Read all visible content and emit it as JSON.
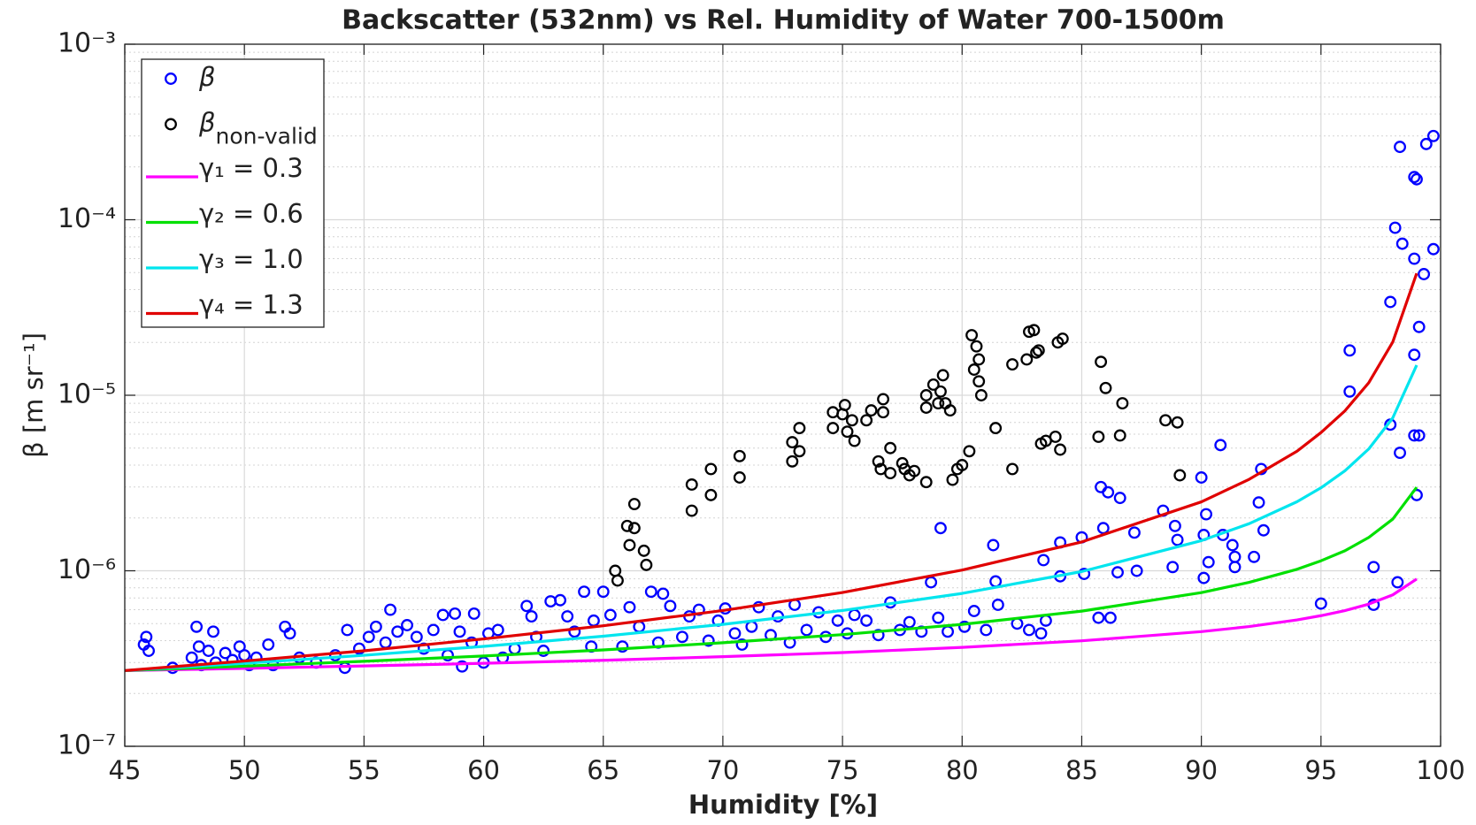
{
  "chart_data": {
    "type": "scatter",
    "title": "Backscatter (532nm) vs Rel. Humidity of Water 700-1500m",
    "x_label": "Humidity [%]",
    "y_label": "β [m sr⁻¹]",
    "xlim": [
      45,
      100
    ],
    "xticks": [
      45,
      50,
      55,
      60,
      65,
      70,
      75,
      80,
      85,
      90,
      95,
      100
    ],
    "ylim": [
      1e-07,
      0.001
    ],
    "yticks": [
      {
        "value": 1e-07,
        "label": "10⁻⁷"
      },
      {
        "value": 1e-06,
        "label": "10⁻⁶"
      },
      {
        "value": 1e-05,
        "label": "10⁻⁵"
      },
      {
        "value": 0.0001,
        "label": "10⁻⁴"
      },
      {
        "value": 0.001,
        "label": "10⁻³"
      }
    ],
    "y_scale": "log",
    "grid": true,
    "minor_grid": true,
    "legend": "upper left",
    "series": [
      {
        "name": "β",
        "type": "scatter",
        "color": "#0000ff",
        "x": [
          45.8,
          45.9,
          46,
          47,
          47.8,
          48,
          48.1,
          48.2,
          48.5,
          48.7,
          48.8,
          49.2,
          49.5,
          49.8,
          50,
          50.2,
          50.5,
          51,
          51.2,
          51.7,
          51.9,
          52.3,
          53,
          53.8,
          54.2,
          54.3,
          54.8,
          55.2,
          55.5,
          55.9,
          56.1,
          56.4,
          56.8,
          57.2,
          57.5,
          57.9,
          58.3,
          58.5,
          58.8,
          59,
          59.1,
          59.5,
          59.6,
          60,
          60.2,
          60.6,
          60.8,
          61.3,
          61.8,
          62,
          62.2,
          62.5,
          62.8,
          63.2,
          63.5,
          63.8,
          64.2,
          64.5,
          64.6,
          65,
          65.3,
          65.8,
          66.1,
          66.5,
          67,
          67.3,
          67.5,
          67.8,
          68.3,
          68.6,
          69,
          69.4,
          69.8,
          70.1,
          70.5,
          70.8,
          71.2,
          71.5,
          72,
          72.3,
          72.8,
          73,
          73.5,
          74,
          74.3,
          74.8,
          75.2,
          75.5,
          76,
          76.5,
          77,
          77.4,
          77.8,
          78.3,
          78.7,
          79,
          79.1,
          79.4,
          80.1,
          80.5,
          81,
          81.3,
          81.4,
          81.5,
          82.3,
          82.8,
          83.3,
          83.4,
          83.5,
          84.1,
          84.1,
          85,
          85.1,
          85.7,
          85.8,
          85.9,
          86.1,
          86.2,
          86.5,
          86.6,
          87.2,
          87.3,
          88.4,
          88.8,
          88.9,
          89,
          90,
          90.1,
          90.2,
          90.1,
          90.3,
          90.8,
          90.9,
          91.3,
          91.4,
          91.4,
          92.2,
          92.4,
          92.5,
          92.6,
          95,
          96.2,
          96.2,
          97.2,
          97.2,
          97.9,
          97.9,
          98.1,
          98.2,
          98.4,
          98.3,
          98.3,
          98.9,
          99,
          98.9,
          98.9,
          98.9,
          99.1,
          99.1,
          99,
          99.3,
          99.4,
          99.7,
          99.7
        ],
        "values": [
          3.8e-07,
          4.2e-07,
          3.5e-07,
          2.8e-07,
          3.2e-07,
          4.8e-07,
          3.7e-07,
          2.9e-07,
          3.5e-07,
          4.5e-07,
          3e-07,
          3.4e-07,
          3.1e-07,
          3.7e-07,
          3.3e-07,
          2.9e-07,
          3.2e-07,
          3.8e-07,
          2.9e-07,
          4.8e-07,
          4.4e-07,
          3.2e-07,
          3e-07,
          3.3e-07,
          2.8e-07,
          4.6e-07,
          3.6e-07,
          4.2e-07,
          4.8e-07,
          3.9e-07,
          6e-07,
          4.5e-07,
          4.9e-07,
          4.2e-07,
          3.6e-07,
          4.6e-07,
          5.6e-07,
          3.3e-07,
          5.7e-07,
          4.5e-07,
          2.85e-07,
          3.9e-07,
          5.7e-07,
          3e-07,
          4.4e-07,
          4.6e-07,
          3.2e-07,
          3.6e-07,
          6.3e-07,
          5.5e-07,
          4.2e-07,
          3.5e-07,
          6.7e-07,
          6.8e-07,
          5.5e-07,
          4.5e-07,
          7.6e-07,
          3.7e-07,
          5.2e-07,
          7.6e-07,
          5.6e-07,
          3.7e-07,
          6.2e-07,
          4.8e-07,
          7.6e-07,
          3.9e-07,
          7.4e-07,
          6.3e-07,
          4.2e-07,
          5.5e-07,
          6e-07,
          4e-07,
          5.2e-07,
          6.1e-07,
          4.4e-07,
          3.8e-07,
          4.8e-07,
          6.2e-07,
          4.3e-07,
          5.5e-07,
          3.9e-07,
          6.4e-07,
          4.6e-07,
          5.8e-07,
          4.2e-07,
          5.2e-07,
          4.4e-07,
          5.6e-07,
          5.2e-07,
          4.3e-07,
          6.6e-07,
          4.6e-07,
          5.1e-07,
          4.5e-07,
          8.6e-07,
          5.4e-07,
          1.75e-06,
          4.5e-07,
          4.8e-07,
          5.9e-07,
          4.6e-07,
          1.4e-06,
          8.7e-07,
          6.4e-07,
          5e-07,
          4.6e-07,
          4.4e-07,
          1.15e-06,
          5.2e-07,
          1.45e-06,
          9.3e-07,
          1.55e-06,
          9.6e-07,
          5.4e-07,
          3e-06,
          1.75e-06,
          2.8e-06,
          5.4e-07,
          9.8e-07,
          2.6e-06,
          1.65e-06,
          1e-06,
          2.2e-06,
          1.05e-06,
          1.8e-06,
          1.5e-06,
          3.4e-06,
          1.6e-06,
          2.1e-06,
          9.1e-07,
          1.12e-06,
          5.2e-06,
          1.6e-06,
          1.4e-06,
          1.2e-06,
          1.05e-06,
          1.2e-06,
          2.45e-06,
          3.8e-06,
          1.7e-06,
          6.5e-07,
          1.8e-05,
          1.05e-05,
          1.05e-06,
          6.4e-07,
          6.8e-06,
          3.4e-05,
          9e-05,
          8.6e-07,
          7.3e-05,
          4.7e-06,
          0.00026,
          0.000175,
          0.00017,
          6e-05,
          1.7e-05,
          5.9e-06,
          2.45e-05,
          5.9e-06,
          2.7e-06,
          4.9e-05,
          0.00027,
          0.0003,
          6.8e-05
        ]
      },
      {
        "name": "β",
        "name_sub": "non-valid",
        "type": "scatter",
        "color": "#000000",
        "x": [
          65.5,
          65.6,
          66,
          66.1,
          66.3,
          66.3,
          66.7,
          66.8,
          68.7,
          68.7,
          69.5,
          69.5,
          70.7,
          70.7,
          72.9,
          72.9,
          73.2,
          73.2,
          74.6,
          74.6,
          75,
          75.1,
          75.2,
          75.4,
          75.5,
          76,
          76.2,
          76.5,
          76.6,
          76.7,
          76.7,
          77,
          77,
          77.5,
          77.6,
          77.8,
          78,
          78.5,
          78.5,
          78.5,
          78.8,
          79,
          79.1,
          79.2,
          79.3,
          79.5,
          79.6,
          79.8,
          80,
          80.3,
          80.4,
          80.5,
          80.6,
          80.7,
          80.7,
          80.8,
          81.4,
          82.1,
          82.1,
          82.7,
          82.8,
          83,
          83.1,
          83.2,
          83.3,
          83.5,
          83.9,
          84,
          84.2,
          84.1,
          85.8,
          85.7,
          86,
          86.6,
          86.7,
          88.5,
          89,
          89.1
        ],
        "values": [
          1e-06,
          8.8e-07,
          1.8e-06,
          1.4e-06,
          2.4e-06,
          1.75e-06,
          1.3e-06,
          1.08e-06,
          3.1e-06,
          2.2e-06,
          3.8e-06,
          2.7e-06,
          4.5e-06,
          3.4e-06,
          5.4e-06,
          4.2e-06,
          6.5e-06,
          4.8e-06,
          8e-06,
          6.5e-06,
          7.8e-06,
          8.8e-06,
          6.2e-06,
          7.2e-06,
          5.5e-06,
          7.2e-06,
          8.2e-06,
          4.2e-06,
          3.8e-06,
          9.5e-06,
          8e-06,
          5e-06,
          3.6e-06,
          4.1e-06,
          3.8e-06,
          3.5e-06,
          3.7e-06,
          1e-05,
          8.5e-06,
          3.2e-06,
          1.15e-05,
          9e-06,
          1.05e-05,
          1.3e-05,
          9e-06,
          8.2e-06,
          3.3e-06,
          3.8e-06,
          4e-06,
          4.8e-06,
          2.2e-05,
          1.4e-05,
          1.9e-05,
          1.6e-05,
          1.2e-05,
          1e-05,
          6.5e-06,
          1.5e-05,
          3.8e-06,
          1.6e-05,
          2.3e-05,
          2.35e-05,
          1.75e-05,
          1.8e-05,
          5.3e-06,
          5.5e-06,
          5.8e-06,
          2e-05,
          2.1e-05,
          4.9e-06,
          1.55e-05,
          5.8e-06,
          1.1e-05,
          5.9e-06,
          9e-06,
          7.2e-06,
          7e-06,
          3.5e-06
        ]
      },
      {
        "name": "γ₁ = 0.3",
        "type": "line",
        "color": "#ff00ff",
        "x": [
          45,
          50,
          55,
          60,
          65,
          70,
          75,
          80,
          85,
          90,
          92,
          94,
          95,
          96,
          97,
          98,
          99
        ],
        "values": [
          2.7e-07,
          2.78e-07,
          2.87e-07,
          2.97e-07,
          3.09e-07,
          3.24e-07,
          3.42e-07,
          3.66e-07,
          3.99e-07,
          4.5e-07,
          4.81e-07,
          5.25e-07,
          5.55e-07,
          5.93e-07,
          6.46e-07,
          7.29e-07,
          8.98e-07
        ]
      },
      {
        "name": "γ₂ = 0.6",
        "type": "line",
        "color": "#00e000",
        "x": [
          45,
          50,
          55,
          60,
          65,
          70,
          75,
          80,
          85,
          90,
          92,
          94,
          95,
          96,
          97,
          98,
          99
        ],
        "values": [
          2.7e-07,
          2.86e-07,
          3.05e-07,
          3.27e-07,
          3.54e-07,
          3.89e-07,
          4.33e-07,
          4.95e-07,
          5.89e-07,
          7.51e-07,
          8.59e-07,
          1.02e-06,
          1.14e-06,
          1.3e-06,
          1.55e-06,
          1.97e-06,
          2.99e-06
        ]
      },
      {
        "name": "γ₃ = 1.0",
        "type": "line",
        "color": "#00e5ee",
        "x": [
          45,
          50,
          55,
          60,
          65,
          70,
          75,
          80,
          85,
          90,
          92,
          94,
          95,
          96,
          97,
          98,
          99
        ],
        "values": [
          2.7e-07,
          2.97e-07,
          3.3e-07,
          3.71e-07,
          4.24e-07,
          4.95e-07,
          5.94e-07,
          7.43e-07,
          9.9e-07,
          1.485e-06,
          1.856e-06,
          2.475e-06,
          2.97e-06,
          3.71e-06,
          4.95e-06,
          7.43e-06,
          1.485e-05
        ]
      },
      {
        "name": "γ₄ = 1.3",
        "type": "line",
        "color": "#e00000",
        "x": [
          45,
          50,
          55,
          60,
          65,
          70,
          75,
          80,
          85,
          90,
          92,
          94,
          95,
          96,
          97,
          98,
          99
        ],
        "values": [
          2.7e-07,
          3.06e-07,
          3.5e-07,
          4.09e-07,
          4.86e-07,
          5.94e-07,
          7.52e-07,
          1.01e-06,
          1.46e-06,
          2.47e-06,
          3.32e-06,
          4.8e-06,
          6.13e-06,
          8.15e-06,
          1.18e-05,
          2.01e-05,
          4.95e-05
        ]
      }
    ]
  }
}
